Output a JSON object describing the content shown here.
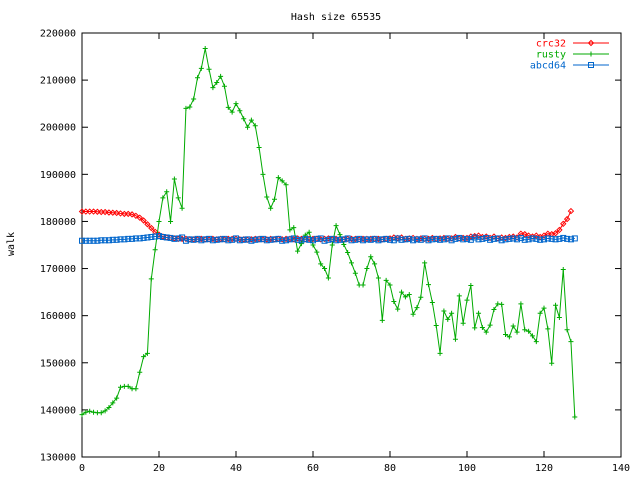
{
  "chart_data": {
    "type": "line",
    "title": "Hash size 65535",
    "xlabel": "",
    "ylabel": "walk",
    "xlim": [
      0,
      140
    ],
    "ylim": [
      130000,
      220000
    ],
    "xticks": [
      0,
      20,
      40,
      60,
      80,
      100,
      120,
      140
    ],
    "yticks": [
      130000,
      140000,
      150000,
      160000,
      170000,
      180000,
      190000,
      200000,
      210000,
      220000
    ],
    "xtick_labels": [
      "0",
      "20",
      "40",
      "60",
      "80",
      "100",
      "120",
      "140"
    ],
    "ytick_labels": [
      "130000",
      "140000",
      "150000",
      "160000",
      "170000",
      "180000",
      "190000",
      "200000",
      "210000",
      "220000"
    ],
    "grid": false,
    "legend_position": "top-right",
    "series": [
      {
        "name": "crc32",
        "color": "#ff0000",
        "marker": "diamond",
        "values": [
          182100,
          182100,
          182100,
          182100,
          182050,
          182000,
          182000,
          181900,
          181850,
          181800,
          181700,
          181600,
          181600,
          181500,
          181200,
          180800,
          180200,
          179400,
          178600,
          177800,
          177200,
          176800,
          176600,
          176500,
          176400,
          176300,
          176300,
          176300,
          176200,
          176200,
          176200,
          176300,
          176200,
          176200,
          176300,
          176200,
          176300,
          176200,
          176300,
          176300,
          176300,
          176200,
          176200,
          176100,
          176200,
          176300,
          176300,
          176200,
          176200,
          176300,
          176200,
          176300,
          176200,
          176300,
          176300,
          176200,
          176400,
          176300,
          176200,
          176300,
          176300,
          176300,
          176200,
          176300,
          176400,
          176200,
          176300,
          176300,
          176200,
          176300,
          176300,
          176300,
          176200,
          176300,
          176300,
          176300,
          176300,
          176300,
          176200,
          176300,
          176400,
          176600,
          176500,
          176600,
          176300,
          176400,
          176500,
          176300,
          176400,
          176300,
          176300,
          176500,
          176300,
          176400,
          176500,
          176300,
          176400,
          176700,
          176400,
          176500,
          176500,
          176800,
          176900,
          177000,
          176700,
          176800,
          176500,
          176800,
          176400,
          176600,
          176500,
          176700,
          176800,
          176600,
          177400,
          177300,
          177000,
          176800,
          177000,
          176700,
          177000,
          177400,
          177300,
          177500,
          178200,
          179500,
          180500,
          182200
        ]
      },
      {
        "name": "rusty",
        "color": "#00aa00",
        "marker": "plus",
        "values": [
          139000,
          139500,
          139700,
          139500,
          139400,
          139400,
          139800,
          140500,
          141500,
          142500,
          144800,
          145000,
          145000,
          144500,
          144500,
          148000,
          151300,
          152000,
          167800,
          174000,
          180000,
          185000,
          186300,
          180000,
          189000,
          185000,
          182800,
          204000,
          204300,
          206000,
          210500,
          212500,
          216700,
          212300,
          208400,
          209500,
          210800,
          208700,
          204200,
          203200,
          205000,
          203500,
          201800,
          200000,
          201500,
          200300,
          195700,
          190000,
          185200,
          182800,
          184700,
          189300,
          188600,
          187800,
          178200,
          178700,
          173700,
          175300,
          177100,
          177700,
          175000,
          173500,
          171000,
          170000,
          168000,
          175000,
          179100,
          177200,
          175100,
          173400,
          171200,
          169000,
          166500,
          166500,
          170000,
          172500,
          171000,
          168000,
          159000,
          167500,
          166500,
          163000,
          161400,
          165000,
          164000,
          164500,
          160300,
          161700,
          163900,
          171200,
          166600,
          162800,
          157900,
          152000,
          161000,
          159200,
          160500,
          155000,
          164200,
          158400,
          163300,
          166400,
          157400,
          160500,
          157500,
          156500,
          158000,
          161300,
          162500,
          162400,
          156000,
          155500,
          157800,
          156500,
          162500,
          157000,
          156700,
          155700,
          154500,
          160500,
          161600,
          157200,
          149900,
          162200,
          159600,
          169800,
          157000,
          154500,
          138500
        ]
      },
      {
        "name": "abcd64",
        "color": "#0066cc",
        "marker": "square",
        "values": [
          175900,
          175900,
          175900,
          175900,
          175900,
          176000,
          176000,
          176000,
          176100,
          176100,
          176200,
          176200,
          176300,
          176300,
          176400,
          176400,
          176500,
          176600,
          176700,
          176800,
          176900,
          176700,
          176600,
          176500,
          176300,
          176400,
          176600,
          175900,
          176200,
          176100,
          176300,
          176000,
          176200,
          176300,
          176000,
          176100,
          176200,
          176300,
          176000,
          176100,
          176400,
          176000,
          176100,
          176200,
          175900,
          176100,
          176200,
          176300,
          176000,
          176100,
          176200,
          176300,
          175900,
          176000,
          176200,
          176400,
          176100,
          176000,
          176300,
          176100,
          176000,
          176300,
          176400,
          175900,
          176100,
          176300,
          176000,
          176100,
          176200,
          176400,
          176000,
          176100,
          176300,
          176000,
          176200,
          176100,
          176300,
          176000,
          176200,
          176300,
          176100,
          176000,
          176400,
          176100,
          176200,
          176300,
          176000,
          176200,
          176100,
          176400,
          176000,
          176200,
          176300,
          176100,
          176200,
          176400,
          176000,
          176300,
          176500,
          176200,
          176300,
          176100,
          176600,
          176200,
          176300,
          176500,
          176100,
          176300,
          176400,
          176000,
          176200,
          176300,
          176400,
          176200,
          176500,
          176100,
          176200,
          176400,
          176300,
          176100,
          176200,
          176400,
          176300,
          176200,
          176300,
          176500,
          176300,
          176200,
          176400
        ]
      }
    ]
  }
}
